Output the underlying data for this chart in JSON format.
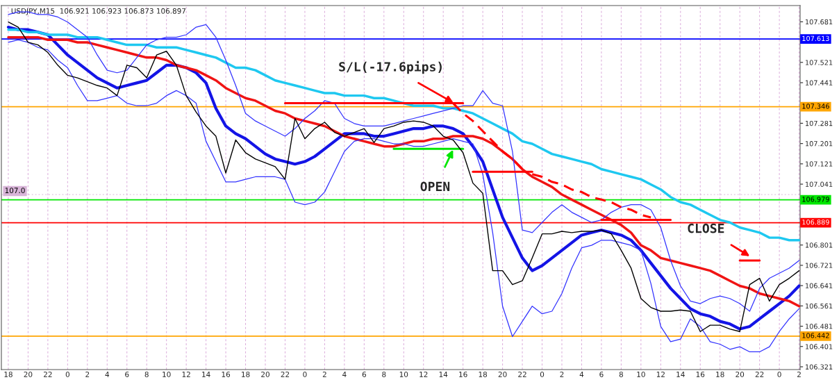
{
  "chart_data": {
    "type": "line",
    "title": "USDJPY,M15  106.921 106.923 106.873 106.897",
    "categories": [
      "18",
      null,
      "20",
      null,
      "22",
      null,
      "0",
      null,
      "2",
      null,
      "4",
      null,
      "6",
      null,
      "8",
      null,
      "10",
      null,
      "12",
      null,
      "14",
      null,
      "16",
      null,
      "18",
      null,
      "20",
      null,
      "22",
      null,
      "0",
      null,
      "2",
      null,
      "4",
      null,
      "6",
      null,
      "8",
      null,
      "10",
      null,
      "12",
      null,
      "14",
      null,
      "16",
      null,
      "18",
      null,
      "20",
      null,
      "22",
      null,
      "0",
      null,
      "2",
      null,
      "4",
      null,
      "6",
      null,
      "8",
      null,
      "10",
      null,
      "12",
      null,
      "14",
      null,
      "16",
      null,
      "18",
      null,
      "20",
      null,
      "22",
      null,
      "0",
      null,
      "2"
    ],
    "ylim": [
      106.31,
      107.745
    ],
    "yticks": [
      106.321,
      106.401,
      106.481,
      106.561,
      106.641,
      106.721,
      106.801,
      107.041,
      107.121,
      107.201,
      107.281,
      107.441,
      107.521,
      107.681
    ],
    "grid": "x",
    "marker": "none",
    "series": [
      {
        "color": "#000000",
        "values": [
          107.68,
          107.66,
          107.6,
          107.59,
          107.56,
          107.51,
          107.47,
          107.46,
          107.445,
          107.43,
          107.42,
          107.39,
          107.51,
          107.5,
          107.46,
          107.55,
          107.565,
          107.51,
          107.39,
          107.325,
          107.27,
          107.23,
          107.085,
          107.215,
          107.165,
          107.14,
          107.125,
          107.11,
          107.06,
          107.3,
          107.22,
          107.26,
          107.285,
          107.245,
          107.23,
          107.245,
          107.26,
          107.205,
          107.26,
          107.27,
          107.285,
          107.29,
          107.285,
          107.27,
          107.23,
          107.215,
          107.165,
          107.045,
          107.005,
          106.7,
          106.7,
          106.645,
          106.66,
          106.75,
          106.845,
          106.845,
          106.855,
          106.85,
          106.855,
          106.855,
          106.86,
          106.845,
          106.78,
          106.71,
          106.59,
          106.555,
          106.54,
          106.54,
          106.545,
          106.54,
          106.46,
          106.485,
          106.485,
          106.47,
          106.46,
          106.645,
          106.67,
          106.58,
          106.645,
          106.67,
          106.7
        ]
      },
      {
        "color": "#1414e6",
        "values": [
          107.66,
          107.65,
          107.65,
          107.64,
          107.63,
          107.59,
          107.55,
          107.52,
          107.49,
          107.46,
          107.44,
          107.42,
          107.43,
          107.44,
          107.45,
          107.48,
          107.51,
          107.51,
          107.5,
          107.48,
          107.44,
          107.34,
          107.27,
          107.24,
          107.22,
          107.19,
          107.16,
          107.14,
          107.13,
          107.12,
          107.13,
          107.15,
          107.18,
          107.21,
          107.24,
          107.24,
          107.24,
          107.23,
          107.23,
          107.24,
          107.25,
          107.26,
          107.26,
          107.27,
          107.27,
          107.26,
          107.24,
          107.19,
          107.13,
          107.02,
          106.91,
          106.83,
          106.75,
          106.7,
          106.72,
          106.75,
          106.78,
          106.81,
          106.84,
          106.85,
          106.86,
          106.85,
          106.84,
          106.82,
          106.78,
          106.73,
          106.68,
          106.63,
          106.59,
          106.55,
          106.53,
          106.52,
          106.5,
          106.49,
          106.47,
          106.48,
          106.51,
          106.54,
          106.57,
          106.6,
          106.64
        ]
      },
      {
        "color": "#f01414",
        "values": [
          107.62,
          107.62,
          107.62,
          107.62,
          107.61,
          107.61,
          107.61,
          107.6,
          107.6,
          107.59,
          107.58,
          107.57,
          107.56,
          107.55,
          107.54,
          107.54,
          107.53,
          107.51,
          107.5,
          107.49,
          107.47,
          107.45,
          107.42,
          107.4,
          107.38,
          107.37,
          107.35,
          107.33,
          107.32,
          107.3,
          107.29,
          107.28,
          107.27,
          107.25,
          107.23,
          107.22,
          107.21,
          107.2,
          107.19,
          107.19,
          107.2,
          107.21,
          107.21,
          107.22,
          107.22,
          107.23,
          107.23,
          107.23,
          107.22,
          107.2,
          107.17,
          107.14,
          107.1,
          107.07,
          107.05,
          107.03,
          107.0,
          106.98,
          106.96,
          106.94,
          106.92,
          106.9,
          106.88,
          106.85,
          106.8,
          106.78,
          106.75,
          106.74,
          106.73,
          106.72,
          106.71,
          106.7,
          106.68,
          106.66,
          106.64,
          106.63,
          106.61,
          106.6,
          106.59,
          106.58,
          106.56
        ]
      },
      {
        "color": "#1ec8f0",
        "values": [
          107.65,
          107.65,
          107.64,
          107.64,
          107.63,
          107.63,
          107.63,
          107.62,
          107.62,
          107.62,
          107.61,
          107.6,
          107.59,
          107.59,
          107.59,
          107.58,
          107.58,
          107.58,
          107.57,
          107.56,
          107.55,
          107.54,
          107.52,
          107.5,
          107.5,
          107.49,
          107.47,
          107.45,
          107.44,
          107.43,
          107.42,
          107.41,
          107.4,
          107.4,
          107.39,
          107.39,
          107.39,
          107.38,
          107.38,
          107.37,
          107.36,
          107.35,
          107.35,
          107.35,
          107.34,
          107.34,
          107.33,
          107.32,
          107.3,
          107.28,
          107.26,
          107.24,
          107.21,
          107.2,
          107.18,
          107.16,
          107.15,
          107.14,
          107.13,
          107.12,
          107.1,
          107.09,
          107.08,
          107.07,
          107.06,
          107.04,
          107.02,
          106.99,
          106.97,
          106.96,
          106.94,
          106.92,
          106.9,
          106.89,
          106.87,
          106.86,
          106.85,
          106.83,
          106.83,
          106.82,
          106.82
        ]
      },
      {
        "color": "#3232ff",
        "values": [
          107.71,
          107.72,
          107.72,
          107.71,
          107.71,
          107.7,
          107.68,
          107.65,
          107.62,
          107.55,
          107.49,
          107.48,
          107.49,
          107.54,
          107.59,
          107.61,
          107.62,
          107.62,
          107.63,
          107.66,
          107.67,
          107.62,
          107.53,
          107.43,
          107.32,
          107.29,
          107.27,
          107.25,
          107.23,
          107.26,
          107.3,
          107.33,
          107.37,
          107.36,
          107.3,
          107.28,
          107.27,
          107.27,
          107.27,
          107.28,
          107.29,
          107.3,
          107.31,
          107.32,
          107.33,
          107.34,
          107.35,
          107.35,
          107.41,
          107.36,
          107.35,
          107.17,
          106.86,
          106.85,
          106.89,
          106.93,
          106.96,
          106.93,
          106.91,
          106.89,
          106.9,
          106.93,
          106.95,
          106.96,
          106.96,
          106.94,
          106.87,
          106.74,
          106.64,
          106.58,
          106.57,
          106.59,
          106.6,
          106.59,
          106.57,
          106.54,
          106.63,
          106.67,
          106.69,
          106.71,
          106.74
        ]
      },
      {
        "color": "#3232ff",
        "values": [
          107.6,
          107.61,
          107.6,
          107.58,
          107.57,
          107.53,
          107.5,
          107.43,
          107.37,
          107.37,
          107.38,
          107.39,
          107.36,
          107.35,
          107.35,
          107.36,
          107.39,
          107.41,
          107.39,
          107.36,
          107.21,
          107.13,
          107.05,
          107.05,
          107.06,
          107.07,
          107.07,
          107.07,
          107.06,
          106.97,
          106.96,
          106.97,
          107.01,
          107.09,
          107.17,
          107.21,
          107.22,
          107.22,
          107.21,
          107.2,
          107.2,
          107.19,
          107.19,
          107.2,
          107.21,
          107.22,
          107.21,
          107.2,
          107.08,
          106.85,
          106.56,
          106.44,
          106.5,
          106.56,
          106.53,
          106.54,
          106.61,
          106.71,
          106.79,
          106.8,
          106.82,
          106.82,
          106.81,
          106.8,
          106.78,
          106.65,
          106.48,
          106.42,
          106.43,
          106.51,
          106.48,
          106.42,
          106.41,
          106.39,
          106.4,
          106.38,
          106.38,
          106.4,
          106.46,
          106.51,
          106.55
        ]
      },
      {
        "type": "line",
        "color": "#ff0000",
        "values": [
          null,
          null,
          null,
          null,
          null,
          null,
          null,
          null,
          null,
          null,
          null,
          null,
          null,
          null,
          null,
          null,
          null,
          null,
          null,
          null,
          null,
          null,
          null,
          null,
          null,
          null,
          null,
          null,
          107.36,
          107.36,
          107.36,
          107.36,
          107.36,
          107.36,
          107.36,
          107.36,
          107.36,
          107.36,
          107.36,
          107.36,
          107.36,
          107.36,
          107.36,
          107.36,
          107.36,
          107.36,
          107.36,
          null,
          null,
          null,
          null,
          null,
          null,
          null,
          null,
          null,
          null,
          null,
          null,
          null,
          null,
          null,
          null,
          null,
          null,
          null,
          null,
          null,
          null,
          null,
          null,
          null,
          null,
          null,
          null,
          null,
          null,
          null,
          null,
          null,
          null
        ]
      },
      {
        "type": "line",
        "color": "#ff0000",
        "values": [
          null,
          null,
          null,
          null,
          null,
          null,
          null,
          null,
          null,
          null,
          null,
          null,
          null,
          null,
          null,
          null,
          null,
          null,
          null,
          null,
          null,
          null,
          null,
          null,
          null,
          null,
          null,
          null,
          null,
          null,
          null,
          null,
          null,
          null,
          null,
          null,
          null,
          null,
          null,
          null,
          null,
          null,
          null,
          null,
          null,
          null,
          null,
          107.09,
          107.09,
          107.09,
          107.09,
          107.09,
          107.09,
          107.09,
          null,
          null,
          null,
          null,
          null,
          null,
          null,
          null,
          null,
          null,
          null,
          null,
          null,
          null,
          null,
          null,
          null,
          null,
          null,
          null,
          null,
          null,
          null,
          null,
          null,
          null,
          null
        ]
      },
      {
        "type": "line",
        "color": "#ff0000",
        "values": [
          null,
          null,
          null,
          null,
          null,
          null,
          null,
          null,
          null,
          null,
          null,
          null,
          null,
          null,
          null,
          null,
          null,
          null,
          null,
          null,
          null,
          null,
          null,
          null,
          null,
          null,
          null,
          null,
          null,
          null,
          null,
          null,
          null,
          null,
          null,
          null,
          null,
          null,
          null,
          null,
          null,
          null,
          null,
          null,
          null,
          null,
          null,
          null,
          null,
          null,
          null,
          null,
          null,
          null,
          null,
          null,
          null,
          null,
          null,
          null,
          106.9,
          106.9,
          106.9,
          106.9,
          106.9,
          106.9,
          106.9,
          106.9,
          null,
          null,
          null,
          null,
          null,
          null,
          null,
          null,
          null,
          null,
          null,
          null,
          null
        ]
      },
      {
        "type": "line",
        "color": "#ff0000",
        "values": [
          null,
          null,
          null,
          null,
          null,
          null,
          null,
          null,
          null,
          null,
          null,
          null,
          null,
          null,
          null,
          null,
          null,
          null,
          null,
          null,
          null,
          null,
          null,
          null,
          null,
          null,
          null,
          null,
          null,
          null,
          null,
          null,
          null,
          null,
          null,
          null,
          null,
          null,
          null,
          null,
          null,
          null,
          null,
          null,
          null,
          null,
          null,
          null,
          null,
          null,
          null,
          null,
          null,
          null,
          null,
          null,
          null,
          null,
          null,
          null,
          null,
          null,
          null,
          null,
          null,
          null,
          null,
          null,
          null,
          null,
          null,
          null,
          null,
          null,
          106.74,
          106.74,
          106.74,
          null,
          null,
          null,
          null
        ]
      },
      {
        "type": "line",
        "color": "#00e600",
        "values": [
          null,
          null,
          null,
          null,
          null,
          null,
          null,
          null,
          null,
          null,
          null,
          null,
          null,
          null,
          null,
          null,
          null,
          null,
          null,
          null,
          null,
          null,
          null,
          null,
          null,
          null,
          null,
          null,
          null,
          null,
          null,
          null,
          null,
          null,
          null,
          null,
          null,
          null,
          null,
          107.18,
          107.18,
          107.18,
          107.18,
          107.18,
          107.18,
          107.18,
          107.18,
          null,
          null,
          null,
          null,
          null,
          null,
          null,
          null,
          null,
          null,
          null,
          null,
          null,
          null,
          null,
          null,
          null,
          null,
          null,
          null,
          null,
          null,
          null,
          null,
          null,
          null,
          null,
          null,
          null,
          null,
          null,
          null,
          null,
          null
        ]
      },
      {
        "type": "line",
        "color": "#ff0000",
        "line_style": "dashed",
        "values": [
          null,
          null,
          null,
          null,
          null,
          null,
          null,
          null,
          null,
          null,
          null,
          null,
          null,
          null,
          null,
          null,
          null,
          null,
          null,
          null,
          null,
          null,
          null,
          null,
          null,
          null,
          null,
          null,
          null,
          null,
          null,
          null,
          null,
          null,
          null,
          null,
          null,
          null,
          null,
          null,
          null,
          null,
          null,
          null,
          null,
          107.36,
          107.32,
          107.29,
          107.25,
          107.21,
          107.17,
          107.14,
          107.1,
          null,
          null,
          null,
          null,
          null,
          null,
          null,
          null,
          null,
          null,
          null,
          null,
          null,
          null,
          null,
          null,
          null,
          null,
          null,
          null,
          null,
          null,
          null,
          null,
          null,
          null,
          null,
          null
        ]
      },
      {
        "type": "line",
        "color": "#ff0000",
        "line_style": "dashed",
        "values": [
          null,
          null,
          null,
          null,
          null,
          null,
          null,
          null,
          null,
          null,
          null,
          null,
          null,
          null,
          null,
          null,
          null,
          null,
          null,
          null,
          null,
          null,
          null,
          null,
          null,
          null,
          null,
          null,
          null,
          null,
          null,
          null,
          null,
          null,
          null,
          null,
          null,
          null,
          null,
          null,
          null,
          null,
          null,
          null,
          null,
          null,
          null,
          null,
          null,
          null,
          null,
          null,
          null,
          107.08,
          107.07,
          107.05,
          107.04,
          107.02,
          107.01,
          106.99,
          106.98,
          106.97,
          106.95,
          106.94,
          106.92,
          106.91,
          null,
          null,
          null,
          null,
          null,
          null,
          null,
          null,
          null,
          null,
          null,
          null,
          null,
          null,
          null
        ]
      }
    ],
    "ref_lines": [
      {
        "axis": "y",
        "value": 107.613,
        "label": "107.613",
        "color": "#0000ff",
        "line_style": "solid"
      },
      {
        "axis": "y",
        "value": 107.346,
        "label": "107.346",
        "color": "#ffa500",
        "line_style": "solid"
      },
      {
        "axis": "y",
        "value": 106.979,
        "label": "106.979",
        "color": "#00e600",
        "line_style": "solid"
      },
      {
        "axis": "y",
        "value": 106.889,
        "label": "106.889",
        "color": "#ff0000",
        "line_style": "solid"
      },
      {
        "axis": "y",
        "value": 106.442,
        "label": "106.442",
        "color": "#ffa500",
        "line_style": "solid"
      },
      {
        "axis": "y",
        "value": 107.0,
        "label": "107.0",
        "color": "#d8b4d8",
        "line_style": "dotted"
      }
    ],
    "annotations": [
      {
        "text": "S/L(-17.6pips)",
        "y": 107.36
      },
      {
        "text": "OPEN",
        "y": 107.18
      },
      "CLOSE"
    ]
  }
}
